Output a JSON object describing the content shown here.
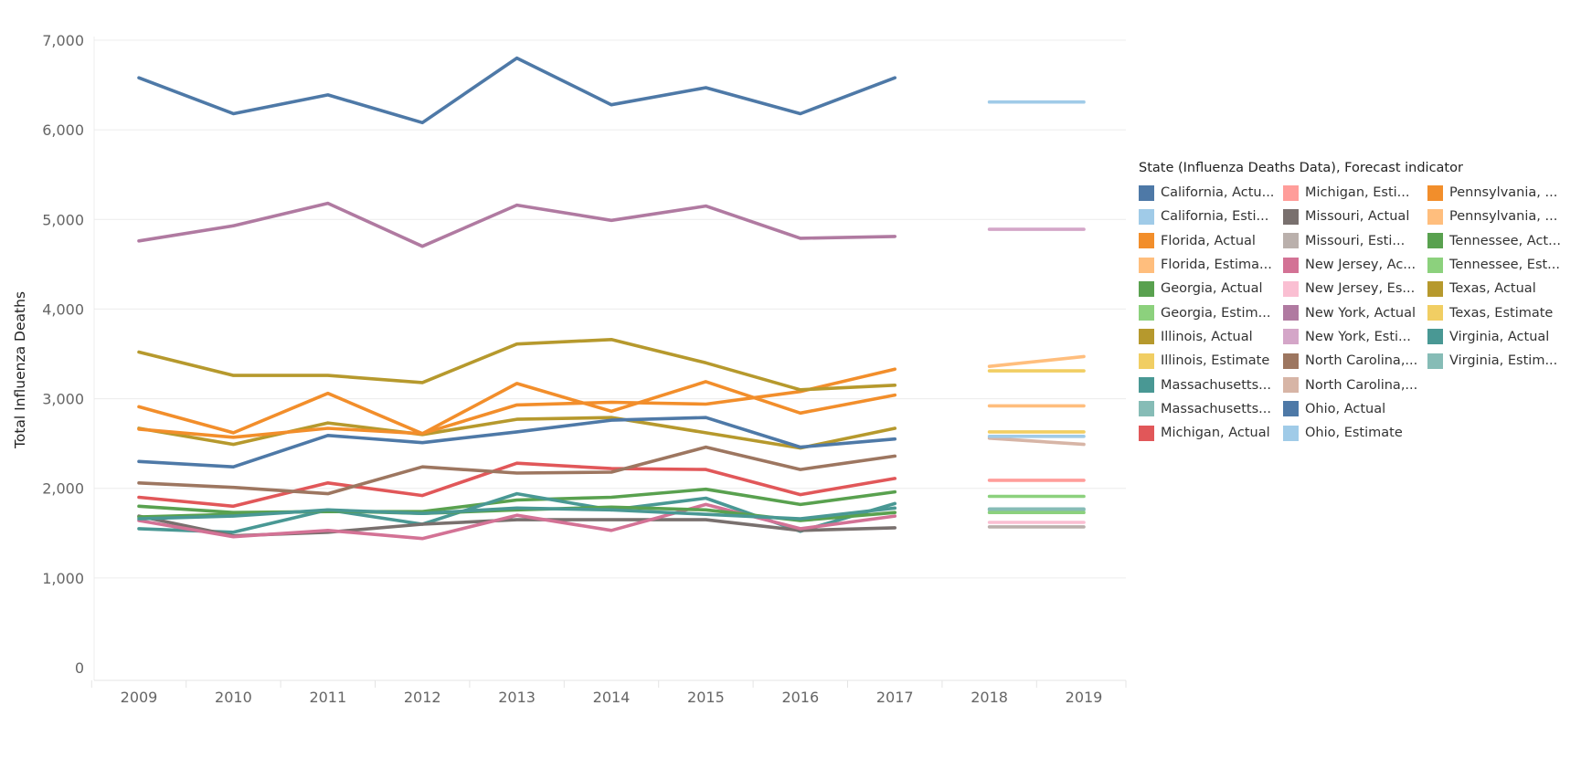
{
  "chart_data": {
    "type": "line",
    "ylabel": "Total Influenza Deaths",
    "xlabel": "",
    "x": [
      "2009",
      "2010",
      "2011",
      "2012",
      "2013",
      "2014",
      "2015",
      "2016",
      "2017",
      "2018",
      "2019"
    ],
    "ylim": [
      0,
      7000
    ],
    "yticks": [
      0,
      1000,
      2000,
      3000,
      4000,
      5000,
      6000,
      7000
    ],
    "ytick_labels": [
      "0",
      "1,000",
      "2,000",
      "3,000",
      "4,000",
      "5,000",
      "6,000",
      "7,000"
    ],
    "grid": "horizontal",
    "legend_title": "State (Influenza Deaths Data), Forecast indicator",
    "legend_position": "right",
    "legend_labels": [
      "California, Actu...",
      "California, Esti...",
      "Florida, Actual",
      "Florida, Estima...",
      "Georgia, Actual",
      "Georgia, Estim...",
      "Illinois, Actual",
      "Illinois, Estimate",
      "Massachusetts...",
      "Massachusetts...",
      "Michigan, Actual",
      "Michigan, Esti...",
      "Missouri, Actual",
      "Missouri, Esti...",
      "New Jersey, Ac...",
      "New Jersey, Es...",
      "New York, Actual",
      "New York, Esti...",
      "North Carolina,...",
      "North Carolina,...",
      "Ohio, Actual",
      "Ohio, Estimate",
      "Pennsylvania, ...",
      "Pennsylvania, ...",
      "Tennessee, Act...",
      "Tennessee, Est...",
      "Texas, Actual",
      "Texas, Estimate",
      "Virginia, Actual",
      "Virginia, Estim..."
    ],
    "series": [
      {
        "color": "#4e79a7",
        "values": [
          6580,
          6180,
          6390,
          6080,
          6800,
          6280,
          6470,
          6180,
          6580,
          null,
          null
        ]
      },
      {
        "color": "#a0cbe8",
        "values": [
          null,
          null,
          null,
          null,
          null,
          null,
          null,
          null,
          null,
          6310,
          6310
        ]
      },
      {
        "color": "#f28e2b",
        "values": [
          2910,
          2620,
          3060,
          2610,
          3170,
          2860,
          3190,
          2840,
          3040,
          null,
          null
        ]
      },
      {
        "color": "#ffbe7d",
        "values": [
          null,
          null,
          null,
          null,
          null,
          null,
          null,
          null,
          null,
          2920,
          2920
        ]
      },
      {
        "color": "#59a14f",
        "values": [
          1800,
          1730,
          1740,
          1740,
          1870,
          1900,
          1990,
          1820,
          1960,
          null,
          null
        ]
      },
      {
        "color": "#8cd17d",
        "values": [
          null,
          null,
          null,
          null,
          null,
          null,
          null,
          null,
          null,
          1910,
          1910
        ]
      },
      {
        "color": "#b6992d",
        "values": [
          2670,
          2490,
          2730,
          2600,
          2770,
          2790,
          2620,
          2450,
          2670,
          null,
          null
        ]
      },
      {
        "color": "#f1ce63",
        "values": [
          null,
          null,
          null,
          null,
          null,
          null,
          null,
          null,
          null,
          2630,
          2630
        ]
      },
      {
        "color": "#499894",
        "values": [
          1550,
          1510,
          1760,
          1600,
          1940,
          1760,
          1890,
          1520,
          1830,
          null,
          null
        ]
      },
      {
        "color": "#86bcb6",
        "values": [
          null,
          null,
          null,
          null,
          null,
          null,
          null,
          null,
          null,
          1760,
          1760
        ]
      },
      {
        "color": "#e15759",
        "values": [
          1900,
          1800,
          2060,
          1920,
          2280,
          2220,
          2210,
          1930,
          2110,
          null,
          null
        ]
      },
      {
        "color": "#ff9d9a",
        "values": [
          null,
          null,
          null,
          null,
          null,
          null,
          null,
          null,
          null,
          2090,
          2090
        ]
      },
      {
        "color": "#79706e",
        "values": [
          1690,
          1470,
          1510,
          1600,
          1650,
          1650,
          1650,
          1530,
          1560,
          null,
          null
        ]
      },
      {
        "color": "#bab0ac",
        "values": [
          null,
          null,
          null,
          null,
          null,
          null,
          null,
          null,
          null,
          1570,
          1570
        ]
      },
      {
        "color": "#d37295",
        "values": [
          1640,
          1460,
          1530,
          1440,
          1700,
          1530,
          1820,
          1550,
          1690,
          null,
          null
        ]
      },
      {
        "color": "#fabfd2",
        "values": [
          null,
          null,
          null,
          null,
          null,
          null,
          null,
          null,
          null,
          1620,
          1620
        ]
      },
      {
        "color": "#b07aa1",
        "values": [
          4760,
          4930,
          5180,
          4700,
          5160,
          4990,
          5150,
          4790,
          4810,
          null,
          null
        ]
      },
      {
        "color": "#d4a6c8",
        "values": [
          null,
          null,
          null,
          null,
          null,
          null,
          null,
          null,
          null,
          4890,
          4890
        ]
      },
      {
        "color": "#9d7660",
        "values": [
          2060,
          2010,
          1940,
          2240,
          2170,
          2180,
          2460,
          2210,
          2360,
          null,
          null
        ]
      },
      {
        "color": "#d7b5a6",
        "values": [
          null,
          null,
          null,
          null,
          null,
          null,
          null,
          null,
          null,
          2560,
          2490
        ]
      },
      {
        "color": "#4e79a7",
        "values": [
          2300,
          2240,
          2590,
          2510,
          2630,
          2760,
          2790,
          2460,
          2550,
          null,
          null
        ]
      },
      {
        "color": "#a0cbe8",
        "values": [
          null,
          null,
          null,
          null,
          null,
          null,
          null,
          null,
          null,
          2580,
          2580
        ]
      },
      {
        "color": "#f28e2b",
        "values": [
          2660,
          2570,
          2670,
          2610,
          2930,
          2960,
          2940,
          3080,
          3330,
          null,
          null
        ]
      },
      {
        "color": "#ffbe7d",
        "values": [
          null,
          null,
          null,
          null,
          null,
          null,
          null,
          null,
          null,
          3360,
          3470
        ]
      },
      {
        "color": "#59a14f",
        "values": [
          1680,
          1710,
          1750,
          1720,
          1760,
          1790,
          1760,
          1640,
          1730,
          null,
          null
        ]
      },
      {
        "color": "#8cd17d",
        "values": [
          null,
          null,
          null,
          null,
          null,
          null,
          null,
          null,
          null,
          1730,
          1730
        ]
      },
      {
        "color": "#b6992d",
        "values": [
          3520,
          3260,
          3260,
          3180,
          3610,
          3660,
          3400,
          3100,
          3150,
          null,
          null
        ]
      },
      {
        "color": "#f1ce63",
        "values": [
          null,
          null,
          null,
          null,
          null,
          null,
          null,
          null,
          null,
          3310,
          3310
        ]
      },
      {
        "color": "#499894",
        "values": [
          1660,
          1690,
          1760,
          1720,
          1780,
          1760,
          1710,
          1660,
          1780,
          null,
          null
        ]
      },
      {
        "color": "#86bcb6",
        "values": [
          null,
          null,
          null,
          null,
          null,
          null,
          null,
          null,
          null,
          1770,
          1770
        ]
      }
    ]
  }
}
